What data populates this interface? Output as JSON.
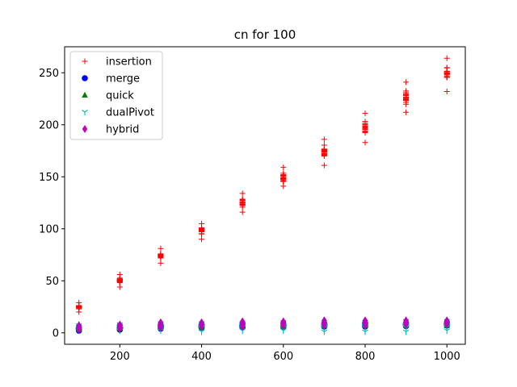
{
  "chart_data": {
    "type": "scatter",
    "title": "cn for 100",
    "xlabel": "",
    "ylabel": "",
    "xlim": [
      65,
      1045
    ],
    "ylim": [
      -11,
      275
    ],
    "xticks": [
      200,
      400,
      600,
      800,
      1000
    ],
    "yticks": [
      0,
      50,
      100,
      150,
      200,
      250
    ],
    "grid": false,
    "legend_position": "top-left",
    "x": [
      100,
      200,
      300,
      400,
      500,
      600,
      700,
      800,
      900,
      1000
    ],
    "series": [
      {
        "name": "insertion",
        "marker": "plus",
        "color": "#ff0000",
        "y_center": [
          25,
          50,
          75,
          99,
          124,
          149,
          174,
          199,
          224,
          249
        ],
        "y_min": [
          20,
          44,
          67,
          90,
          116,
          141,
          161,
          183,
          212,
          232
        ],
        "y_max": [
          29,
          56,
          81,
          105,
          134,
          159,
          186,
          211,
          241,
          264
        ]
      },
      {
        "name": "merge",
        "marker": "circle",
        "color": "#0000ff",
        "y_center": [
          4,
          5,
          6,
          6.5,
          7,
          7.3,
          7.6,
          7.9,
          8.1,
          8.3
        ],
        "y_min": [
          2,
          3,
          4,
          5,
          5,
          5.5,
          6,
          6,
          6.5,
          7
        ],
        "y_max": [
          6,
          7,
          8,
          8,
          9,
          9,
          9,
          9.5,
          9.5,
          10
        ]
      },
      {
        "name": "quick",
        "marker": "triangle",
        "color": "#008000",
        "y_center": [
          5,
          6,
          7,
          7.5,
          8,
          8.2,
          8.5,
          8.8,
          9,
          9.2
        ],
        "y_min": [
          3,
          4,
          5,
          5,
          6,
          6,
          6.5,
          7,
          7,
          7
        ],
        "y_max": [
          8,
          8,
          10,
          10,
          10,
          11,
          11,
          11,
          12,
          12
        ]
      },
      {
        "name": "dualPivot",
        "marker": "tri_down",
        "color": "#00bfbf",
        "y_center": [
          4.5,
          5,
          5.5,
          6,
          6.2,
          6.4,
          6.6,
          6.8,
          7,
          7.2
        ],
        "y_min": [
          2,
          2,
          2,
          1,
          2,
          2,
          1,
          1,
          1,
          2
        ],
        "y_max": [
          7,
          8,
          9,
          9,
          9,
          10,
          10,
          10,
          11,
          11
        ]
      },
      {
        "name": "hybrid",
        "marker": "thin_diamond",
        "color": "#bf00bf",
        "y_center": [
          5,
          6,
          7,
          8,
          8.5,
          9,
          9.2,
          9.5,
          9.8,
          10
        ],
        "y_min": [
          3,
          4,
          5,
          6,
          6,
          7,
          7,
          7,
          8,
          8
        ],
        "y_max": [
          7,
          8,
          10,
          10,
          11,
          11,
          12,
          12,
          12,
          12
        ]
      }
    ]
  }
}
